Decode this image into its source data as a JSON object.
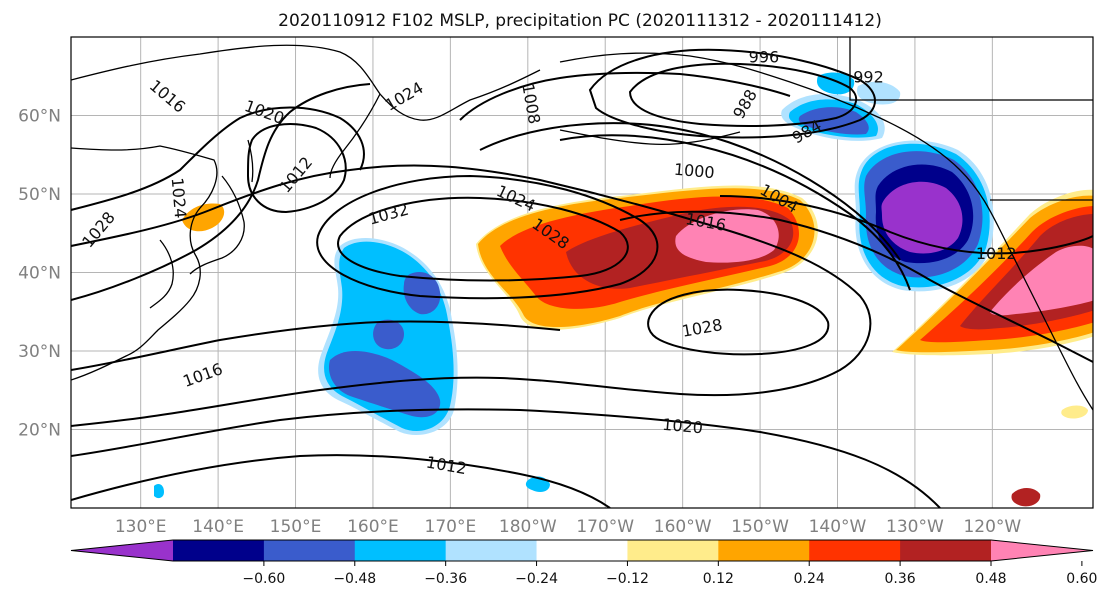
{
  "title": "2020110912 F102 MSLP, precipitation PC (2020111312 - 2020111412)",
  "map": {
    "lon_range": [
      121,
      253
    ],
    "lat_range": [
      10,
      70
    ],
    "lon_ticks": [
      {
        "lon": 130,
        "label": "130°E"
      },
      {
        "lon": 140,
        "label": "140°E"
      },
      {
        "lon": 150,
        "label": "150°E"
      },
      {
        "lon": 160,
        "label": "160°E"
      },
      {
        "lon": 170,
        "label": "170°E"
      },
      {
        "lon": 180,
        "label": "180°W"
      },
      {
        "lon": 190,
        "label": "170°W"
      },
      {
        "lon": 200,
        "label": "160°W"
      },
      {
        "lon": 210,
        "label": "150°W"
      },
      {
        "lon": 220,
        "label": "140°W"
      },
      {
        "lon": 230,
        "label": "130°W"
      },
      {
        "lon": 240,
        "label": "120°W"
      }
    ],
    "lat_ticks": [
      {
        "lat": 20,
        "label": "20°N"
      },
      {
        "lat": 30,
        "label": "30°N"
      },
      {
        "lat": 40,
        "label": "40°N"
      },
      {
        "lat": 50,
        "label": "50°N"
      },
      {
        "lat": 60,
        "label": "60°N"
      }
    ],
    "isobar_labels": [
      {
        "text": "1016",
        "lon": 133.5,
        "lat": 62.5,
        "rot": 40
      },
      {
        "text": "1020",
        "lon": 146,
        "lat": 60.5,
        "rot": 20
      },
      {
        "text": "1024",
        "lon": 164,
        "lat": 62.5,
        "rot": -30
      },
      {
        "text": "1012",
        "lon": 150,
        "lat": 52.5,
        "rot": -50
      },
      {
        "text": "1024",
        "lon": 135,
        "lat": 49.5,
        "rot": 85
      },
      {
        "text": "1028",
        "lon": 124.5,
        "lat": 45.5,
        "rot": -50
      },
      {
        "text": "1008",
        "lon": 180.5,
        "lat": 61.5,
        "rot": 80
      },
      {
        "text": "996",
        "lon": 210.5,
        "lat": 67.5,
        "rot": 0
      },
      {
        "text": "992",
        "lon": 224,
        "lat": 65,
        "rot": 0
      },
      {
        "text": "988",
        "lon": 208,
        "lat": 61.5,
        "rot": -60
      },
      {
        "text": "984",
        "lon": 216,
        "lat": 58,
        "rot": -30
      },
      {
        "text": "1000",
        "lon": 201.5,
        "lat": 53,
        "rot": 5
      },
      {
        "text": "1004",
        "lon": 212.5,
        "lat": 49.5,
        "rot": 30
      },
      {
        "text": "1024",
        "lon": 178.5,
        "lat": 49.5,
        "rot": 25
      },
      {
        "text": "1032",
        "lon": 162,
        "lat": 47.5,
        "rot": -15
      },
      {
        "text": "1028",
        "lon": 183,
        "lat": 45,
        "rot": 35
      },
      {
        "text": "1016",
        "lon": 203,
        "lat": 46.5,
        "rot": 10
      },
      {
        "text": "1012",
        "lon": 240.5,
        "lat": 42.5,
        "rot": 0
      },
      {
        "text": "1028",
        "lon": 202.5,
        "lat": 33,
        "rot": -10
      },
      {
        "text": "1016",
        "lon": 138,
        "lat": 27,
        "rot": -20
      },
      {
        "text": "1020",
        "lon": 200,
        "lat": 20.5,
        "rot": 5
      },
      {
        "text": "1012",
        "lon": 169.5,
        "lat": 15.5,
        "rot": 10
      }
    ]
  },
  "colorbar": {
    "colors": [
      "#9932cc",
      "#00008b",
      "#3a5ccc",
      "#00bfff",
      "#b0e2ff",
      "#ffffff",
      "#ffec8b",
      "#ffa500",
      "#ff3300",
      "#b22222",
      "#ff83b4"
    ],
    "labels": [
      "−0.60",
      "−0.48",
      "−0.36",
      "−0.24",
      "−0.12",
      "0.12",
      "0.24",
      "0.36",
      "0.48",
      "0.60"
    ]
  }
}
